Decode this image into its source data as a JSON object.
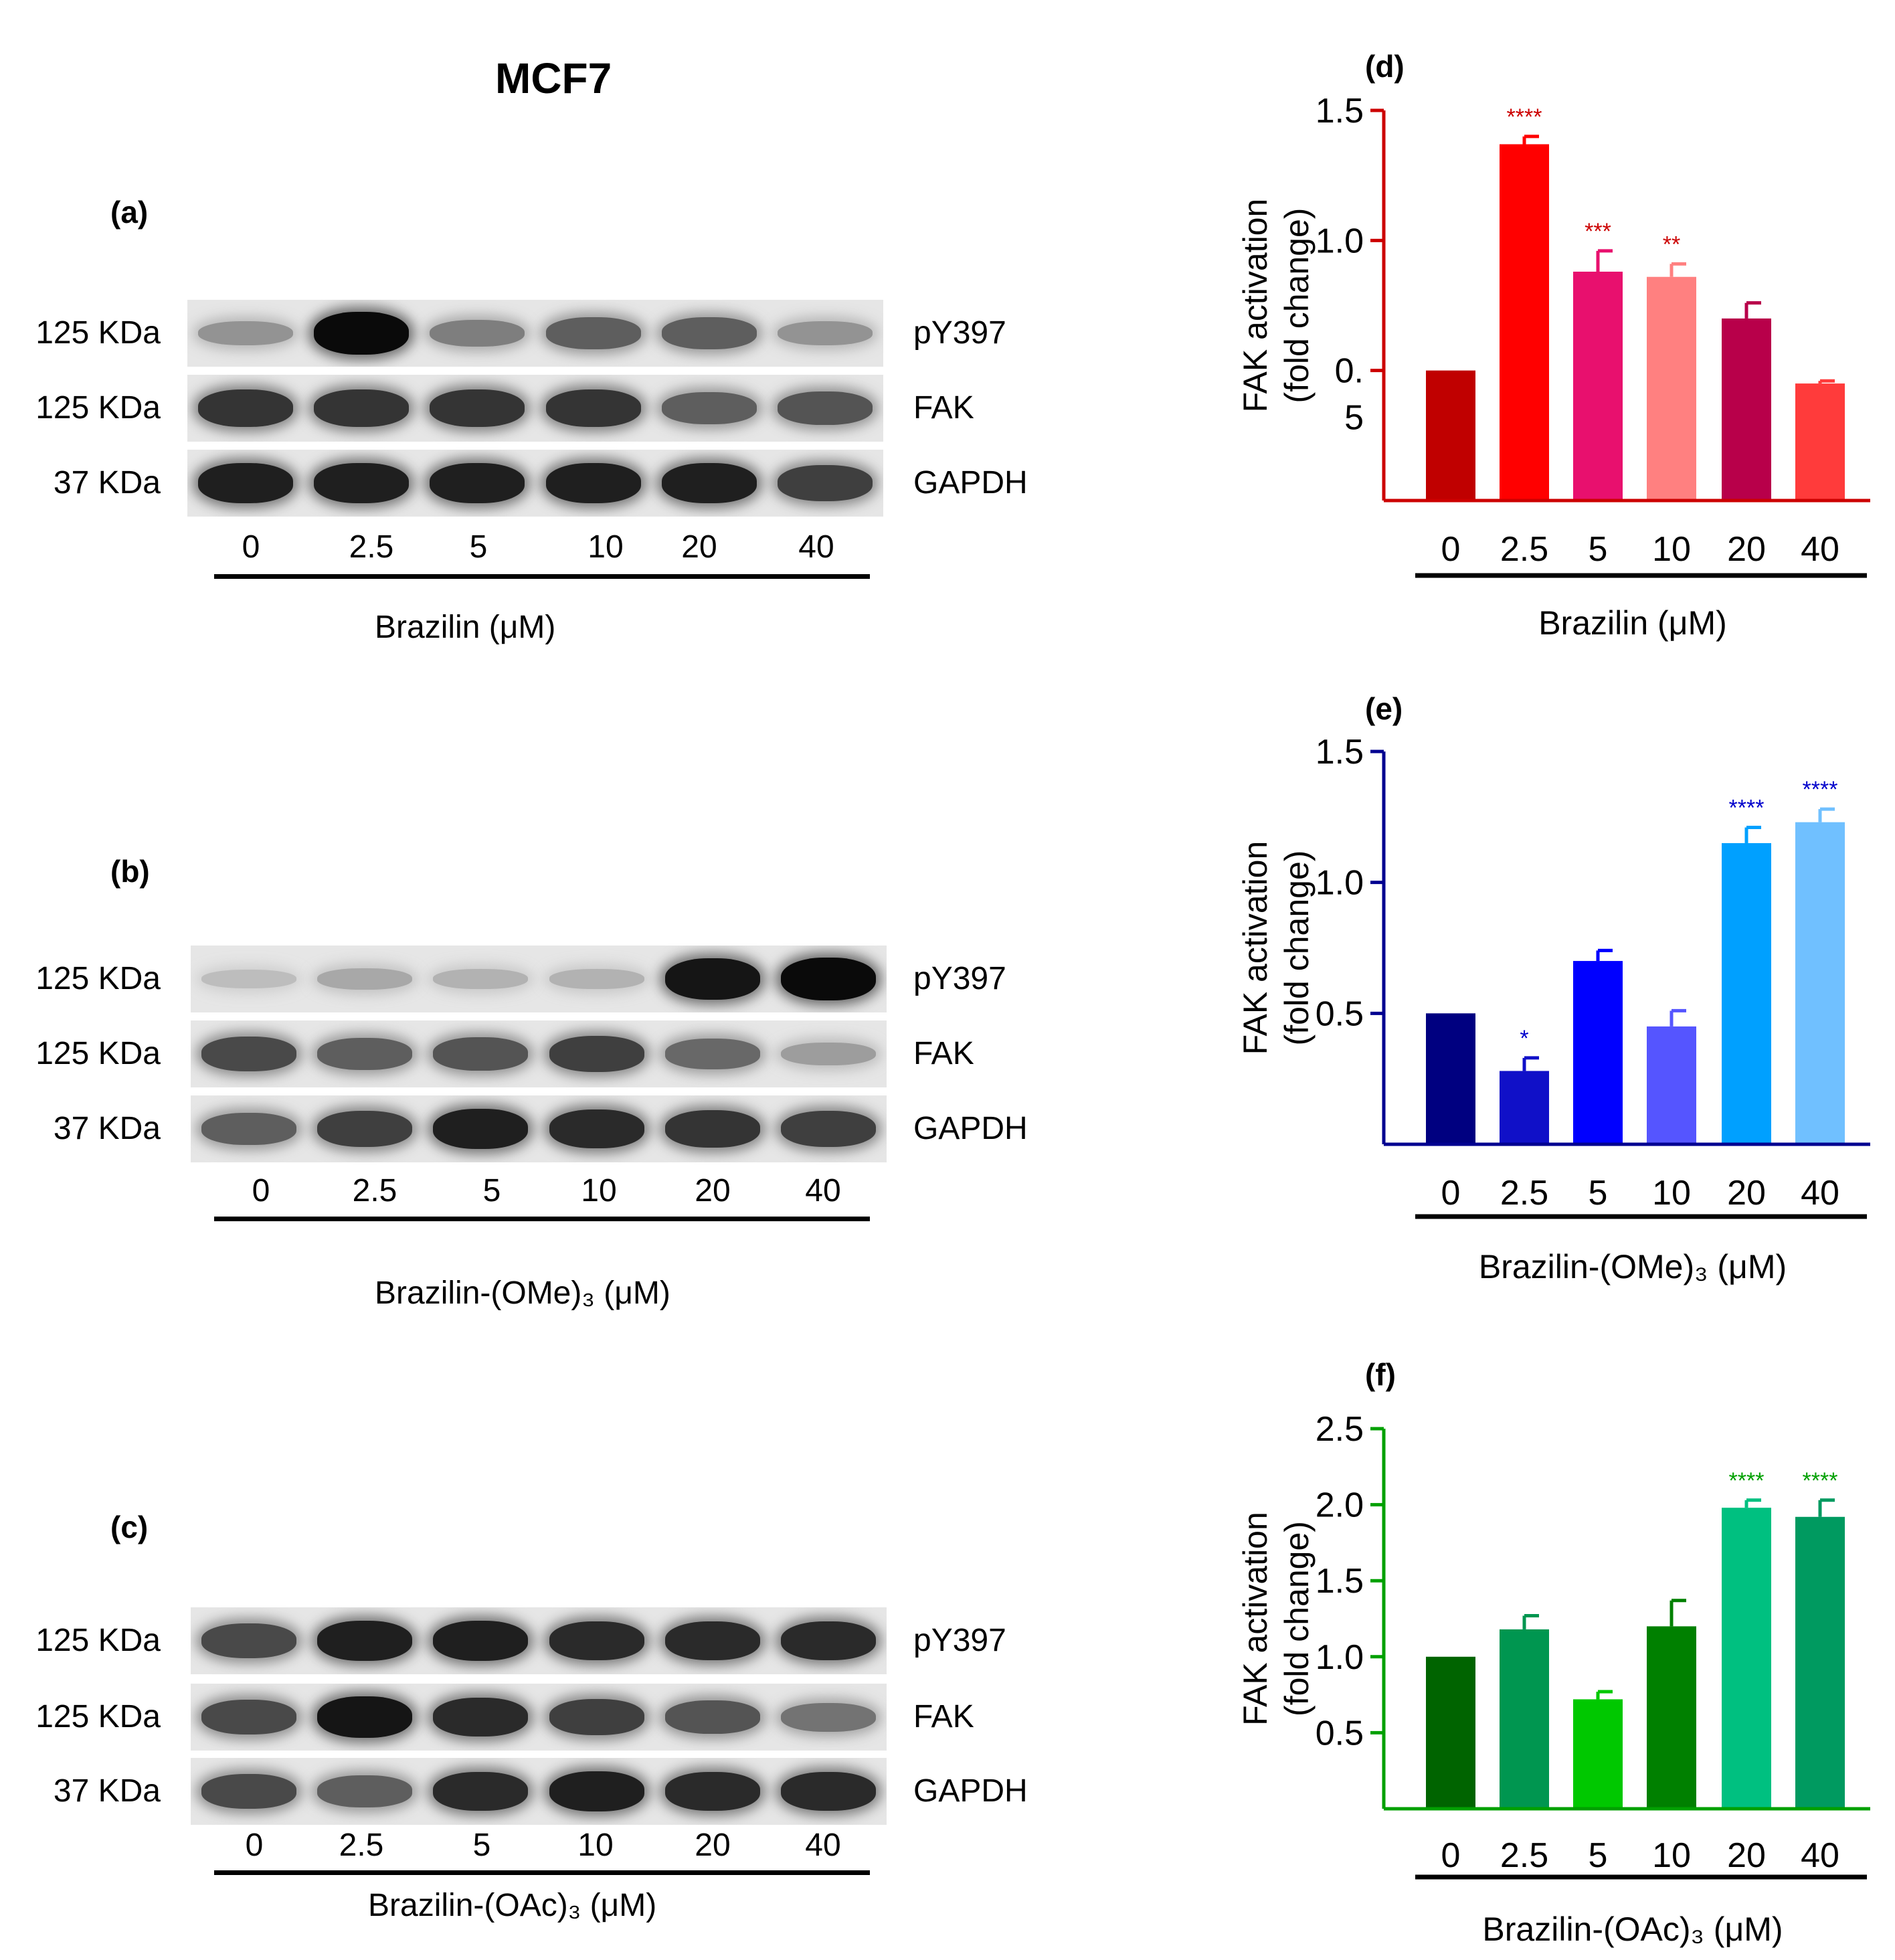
{
  "figure": {
    "title": "MCF7"
  },
  "blots": [
    {
      "panel": "(a)",
      "treatment_label": "Brazilin (μM)",
      "lanes": [
        "0",
        "2.5",
        "5",
        "10",
        "20",
        "40"
      ],
      "rows": [
        {
          "mw": "125 KDa",
          "protein": "pY397",
          "intensity": [
            0.35,
            1.0,
            0.45,
            0.6,
            0.6,
            0.35
          ]
        },
        {
          "mw": "125 KDa",
          "protein": "FAK",
          "intensity": [
            0.8,
            0.8,
            0.8,
            0.8,
            0.6,
            0.65
          ]
        },
        {
          "mw": "37 KDa",
          "protein": "GAPDH",
          "intensity": [
            0.9,
            0.9,
            0.9,
            0.9,
            0.9,
            0.75
          ]
        }
      ]
    },
    {
      "panel": "(b)",
      "treatment_label": "Brazilin-(OMe)₃ (μM)",
      "lanes": [
        "0",
        "2.5",
        "5",
        "10",
        "20",
        "40"
      ],
      "rows": [
        {
          "mw": "125 KDa",
          "protein": "pY397",
          "intensity": [
            0.15,
            0.25,
            0.2,
            0.2,
            0.95,
            1.0
          ]
        },
        {
          "mw": "125 KDa",
          "protein": "FAK",
          "intensity": [
            0.7,
            0.6,
            0.65,
            0.75,
            0.55,
            0.3
          ]
        },
        {
          "mw": "37 KDa",
          "protein": "GAPDH",
          "intensity": [
            0.6,
            0.75,
            0.9,
            0.85,
            0.8,
            0.75
          ]
        }
      ]
    },
    {
      "panel": "(c)",
      "treatment_label": "Brazilin-(OAc)₃ (μM)",
      "lanes": [
        "0",
        "2.5",
        "5",
        "10",
        "20",
        "40"
      ],
      "rows": [
        {
          "mw": "125 KDa",
          "protein": "pY397",
          "intensity": [
            0.7,
            0.9,
            0.9,
            0.85,
            0.85,
            0.85
          ]
        },
        {
          "mw": "125 KDa",
          "protein": "FAK",
          "intensity": [
            0.7,
            0.95,
            0.85,
            0.75,
            0.65,
            0.5
          ]
        },
        {
          "mw": "37 KDa",
          "protein": "GAPDH",
          "intensity": [
            0.7,
            0.6,
            0.85,
            0.9,
            0.85,
            0.85
          ]
        }
      ]
    }
  ],
  "chart_data": [
    {
      "panel": "(d)",
      "type": "bar",
      "categories": [
        "0",
        "2.5",
        "5",
        "10",
        "20",
        "40"
      ],
      "values": [
        0.5,
        1.37,
        0.88,
        0.86,
        0.7,
        0.45
      ],
      "errors": [
        0,
        0.03,
        0.08,
        0.05,
        0.06,
        0.01
      ],
      "significance": [
        "",
        "****",
        "***",
        "**",
        "",
        ""
      ],
      "colors": [
        "#c00000",
        "#ff0000",
        "#e8106e",
        "#ff8080",
        "#b8004a",
        "#ff3b3b"
      ],
      "axis_color": "#cc0000",
      "sig_color": "#cc0000",
      "ylim": [
        0,
        1.5
      ],
      "yticks": [
        {
          "v": 1.5,
          "t": "1.5"
        },
        {
          "v": 1.0,
          "t": "1.0"
        },
        {
          "v": 0.5,
          "t": "0.\n5"
        }
      ],
      "ylabel": [
        "FAK activation",
        "(fold  change)"
      ],
      "xlabel": "Brazilin (μM)"
    },
    {
      "panel": "(e)",
      "type": "bar",
      "categories": [
        "0",
        "2.5",
        "5",
        "10",
        "20",
        "40"
      ],
      "values": [
        0.5,
        0.28,
        0.7,
        0.45,
        1.15,
        1.23
      ],
      "errors": [
        0,
        0.05,
        0.04,
        0.06,
        0.06,
        0.05
      ],
      "significance": [
        "",
        "*",
        "",
        "",
        "****",
        "****"
      ],
      "colors": [
        "#000080",
        "#1010c8",
        "#0000ff",
        "#5555ff",
        "#00a0ff",
        "#70c0ff"
      ],
      "axis_color": "#000090",
      "sig_color": "#0000cc",
      "ylim": [
        0,
        1.5
      ],
      "yticks": [
        {
          "v": 1.5,
          "t": "1.5"
        },
        {
          "v": 1.0,
          "t": "1.0"
        },
        {
          "v": 0.5,
          "t": "0.5"
        }
      ],
      "ylabel": [
        "FAK activation",
        "(fold  change)"
      ],
      "xlabel": "Brazilin-(OMe)₃  (μM)"
    },
    {
      "panel": "(f)",
      "type": "bar",
      "categories": [
        "0",
        "2.5",
        "5",
        "10",
        "20",
        "40"
      ],
      "values": [
        1.0,
        1.18,
        0.72,
        1.2,
        1.98,
        1.92
      ],
      "errors": [
        0,
        0.09,
        0.05,
        0.17,
        0.05,
        0.11
      ],
      "significance": [
        "",
        "",
        "",
        "",
        "****",
        "****"
      ],
      "colors": [
        "#006400",
        "#009650",
        "#00c800",
        "#008000",
        "#00c080",
        "#009a60"
      ],
      "axis_color": "#00a000",
      "sig_color": "#00a000",
      "ylim": [
        0,
        2.5
      ],
      "yticks": [
        {
          "v": 2.5,
          "t": "2.5"
        },
        {
          "v": 2.0,
          "t": "2.0"
        },
        {
          "v": 1.5,
          "t": "1.5"
        },
        {
          "v": 1.0,
          "t": "1.0"
        },
        {
          "v": 0.5,
          "t": "0.5"
        }
      ],
      "ylabel": [
        "FAK activation",
        "(fold  change)"
      ],
      "xlabel": "Brazilin-(OAc)₃  (μM)"
    }
  ]
}
